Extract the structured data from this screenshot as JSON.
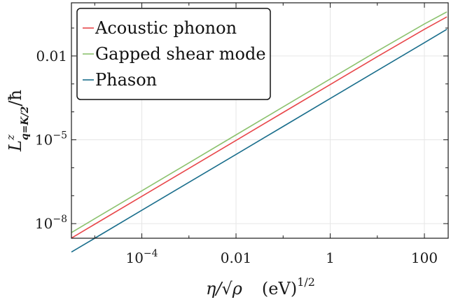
{
  "chart_data": {
    "type": "line",
    "title": "",
    "xlabel_parts": [
      "η/√ρ",
      "(eV)"
    ],
    "xlabel_exp": "1/2",
    "ylabel_main": "L",
    "ylabel_sup": "z",
    "ylabel_sub": "q=K/2",
    "ylabel_tail": "/ħ",
    "xscale": "log",
    "yscale": "log",
    "xlim": [
      3.2e-06,
      320
    ],
    "ylim": [
      3e-09,
      0.8
    ],
    "grid": true,
    "legend_position": "top-left",
    "x_ticks": [
      {
        "value": 0.0001,
        "mant": "10",
        "exp": "−4"
      },
      {
        "value": 0.01,
        "mant": "0.01",
        "exp": ""
      },
      {
        "value": 1,
        "mant": "1",
        "exp": ""
      },
      {
        "value": 100,
        "mant": "100",
        "exp": ""
      }
    ],
    "y_ticks": [
      {
        "value": 1e-08,
        "mant": "10",
        "exp": "−8"
      },
      {
        "value": 1e-05,
        "mant": "10",
        "exp": "−5"
      },
      {
        "value": 0.01,
        "mant": "0.01",
        "exp": ""
      }
    ],
    "series": [
      {
        "name": "Acoustic phonon",
        "color": "#e8474a",
        "x": [
          1e-05,
          0.0001,
          0.001,
          0.01,
          0.1,
          1,
          10,
          100,
          300
        ],
        "y": [
          9.5e-09,
          9.5e-08,
          9.5e-07,
          9.5e-06,
          9.5e-05,
          0.00095,
          0.0095,
          0.09,
          0.25
        ]
      },
      {
        "name": "Gapped shear mode",
        "color": "#8cc26e",
        "x": [
          1e-05,
          0.0001,
          0.001,
          0.01,
          0.1,
          1,
          10,
          100,
          300
        ],
        "y": [
          1.5e-08,
          1.5e-07,
          1.5e-06,
          1.5e-05,
          0.00015,
          0.0015,
          0.015,
          0.14,
          0.38
        ]
      },
      {
        "name": "Phason",
        "color": "#1a6e8c",
        "x": [
          1e-05,
          0.0001,
          0.001,
          0.01,
          0.1,
          1,
          10,
          100,
          300
        ],
        "y": [
          3e-09,
          3e-08,
          3e-07,
          3e-06,
          3e-05,
          0.0003,
          0.003,
          0.03,
          0.09
        ]
      }
    ]
  }
}
